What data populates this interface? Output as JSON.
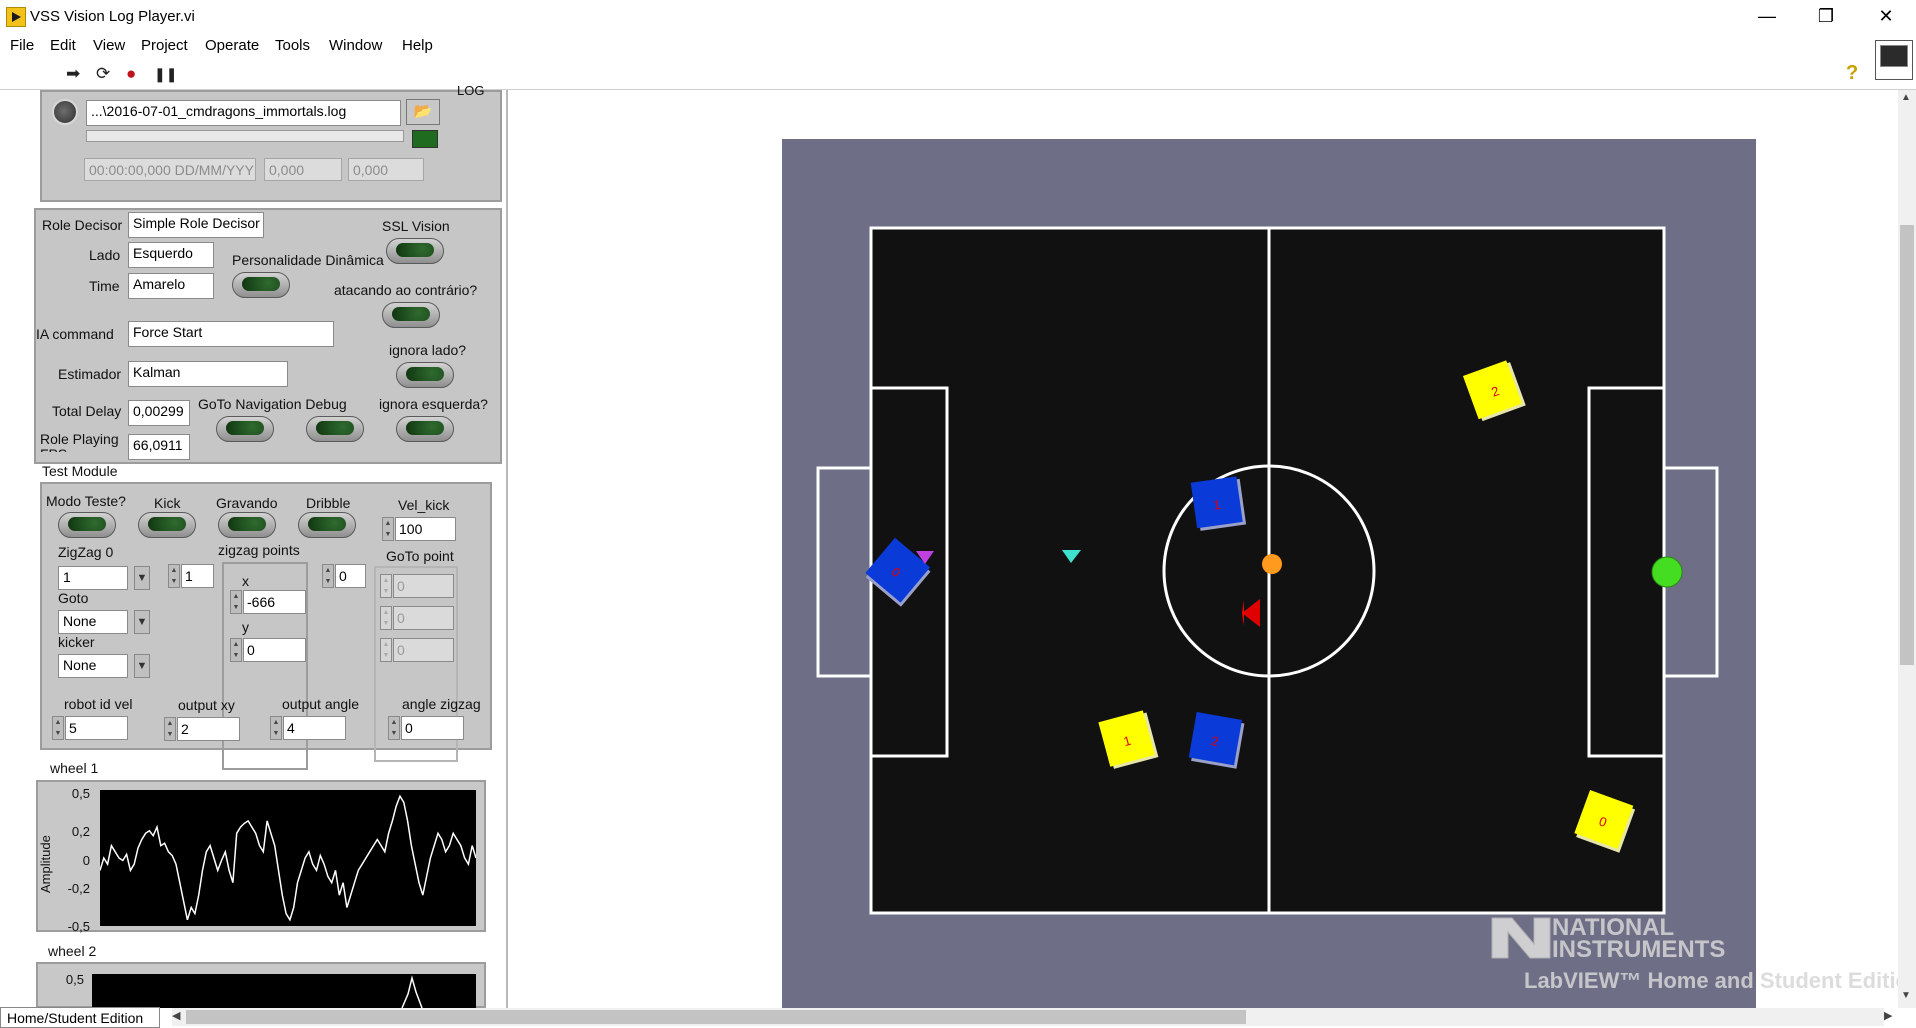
{
  "window": {
    "title": "VSS Vision Log Player.vi",
    "minimize": "—",
    "restore": "❐",
    "close": "✕"
  },
  "menu": [
    "File",
    "Edit",
    "View",
    "Project",
    "Operate",
    "Tools",
    "Window",
    "Help"
  ],
  "toolbar": {
    "run": "➡",
    "run_continuous": "⟳",
    "abort": "●",
    "pause": "❚❚",
    "help": "?"
  },
  "log": {
    "label": "LOG",
    "file_path": "...\\2016-07-01_cmdragons_immortals.log",
    "timestamp": "00:00:00,000 DD/MM/YYY",
    "value1": "0,000",
    "value2": "0,000"
  },
  "config": {
    "role_decisor_label": "Role Decisor",
    "role_decisor_value": "Simple Role Decisor",
    "lado_label": "Lado",
    "lado_value": "Esquerdo",
    "time_label": "Time",
    "time_value": "Amarelo",
    "ia_command_label": "IA command",
    "ia_command_value": "Force Start",
    "estimador_label": "Estimador",
    "estimador_value": "Kalman",
    "total_delay_label": "Total Delay",
    "total_delay_value": "0,00299",
    "role_fps_label": "Role Playing FPS",
    "role_fps_value": "66,0911",
    "ssl_vision_label": "SSL Vision",
    "personalidade_label": "Personalidade Dinâmica",
    "atacando_label": "atacando ao contrário?",
    "ignora_lado_label": "ignora lado?",
    "goto_nav_label": "GoTo Navigation Debug",
    "ignora_esquerda_label": "ignora esquerda?"
  },
  "test_module": {
    "title": "Test Module",
    "modo_teste": "Modo Teste?",
    "kick": "Kick",
    "gravando": "Gravando",
    "dribble": "Dribble",
    "vel_kick_label": "Vel_kick",
    "vel_kick_value": "100",
    "zigzag_label": "ZigZag 0",
    "zigzag_value": "1",
    "zigzag_count": "1",
    "zigzag_points_label": "zigzag points",
    "x_label": "x",
    "x_value": "-666",
    "y_label": "y",
    "y_value": "0",
    "index_value": "0",
    "goto_point_label": "GoTo point",
    "goto_values": [
      "0",
      "0",
      "0"
    ],
    "goto_label": "Goto",
    "goto_value": "None",
    "kicker_label": "kicker",
    "kicker_value": "None",
    "robot_id_vel_label": "robot id vel",
    "robot_id_vel_value": "5",
    "output_xy_label": "output xy",
    "output_xy_value": "2",
    "output_angle_label": "output angle",
    "output_angle_value": "4",
    "angle_zigzag_label": "angle zigzag",
    "angle_zigzag_value": "0"
  },
  "wheel1": {
    "title": "wheel 1",
    "ylabel": "Amplitude",
    "yticks": [
      "0,5",
      "0,2",
      "0",
      "-0,2",
      "-0,5"
    ]
  },
  "wheel2": {
    "title": "wheel 2",
    "yticks": [
      "0,5"
    ]
  },
  "chart_data": [
    {
      "type": "line",
      "title": "wheel 1",
      "ylabel": "Amplitude",
      "ylim": [
        -0.55,
        0.55
      ],
      "yticks": [
        0.5,
        0.2,
        0,
        -0.2,
        -0.5
      ],
      "values": [
        -0.1,
        0.0,
        -0.05,
        0.1,
        0.05,
        0.0,
        -0.02,
        0.03,
        -0.1,
        -0.05,
        0.08,
        0.15,
        0.2,
        0.22,
        0.18,
        0.25,
        0.1,
        0.12,
        0.05,
        0.02,
        -0.05,
        -0.2,
        -0.35,
        -0.5,
        -0.4,
        -0.45,
        -0.3,
        -0.1,
        0.05,
        0.1,
        0.0,
        -0.1,
        -0.02,
        0.05,
        -0.1,
        -0.2,
        0.2,
        0.25,
        0.28,
        0.3,
        0.25,
        0.2,
        0.1,
        0.05,
        0.3,
        0.2,
        0.1,
        -0.1,
        -0.3,
        -0.45,
        -0.5,
        -0.4,
        -0.2,
        -0.1,
        0.0,
        0.05,
        -0.05,
        -0.1,
        0.02,
        -0.05,
        -0.15,
        -0.2,
        -0.1,
        -0.3,
        -0.2,
        -0.4,
        -0.3,
        -0.2,
        -0.1,
        -0.05,
        0.0,
        0.05,
        0.1,
        0.15,
        0.1,
        0.05,
        0.2,
        0.3,
        0.42,
        0.5,
        0.45,
        0.3,
        0.1,
        -0.05,
        -0.2,
        -0.3,
        -0.15,
        0.0,
        0.1,
        0.2,
        0.15,
        0.05,
        0.1,
        0.2,
        0.15,
        0.1,
        0.0,
        -0.05,
        0.1,
        0.0
      ]
    },
    {
      "type": "line",
      "title": "wheel 2",
      "ylim": [
        -0.55,
        0.55
      ],
      "yticks": [
        0.5
      ],
      "values": []
    }
  ],
  "field": {
    "background": "#6e6e86",
    "yellow_robots": [
      "2",
      "1",
      "0"
    ],
    "blue_robots": [
      "1",
      "0",
      "2"
    ]
  },
  "watermark": {
    "line1": "NATIONAL",
    "line2": "INSTRUMENTS",
    "line3": "LabVIEW™ Home and Student Edition"
  },
  "status": {
    "edition": "Home/Student Edition"
  }
}
